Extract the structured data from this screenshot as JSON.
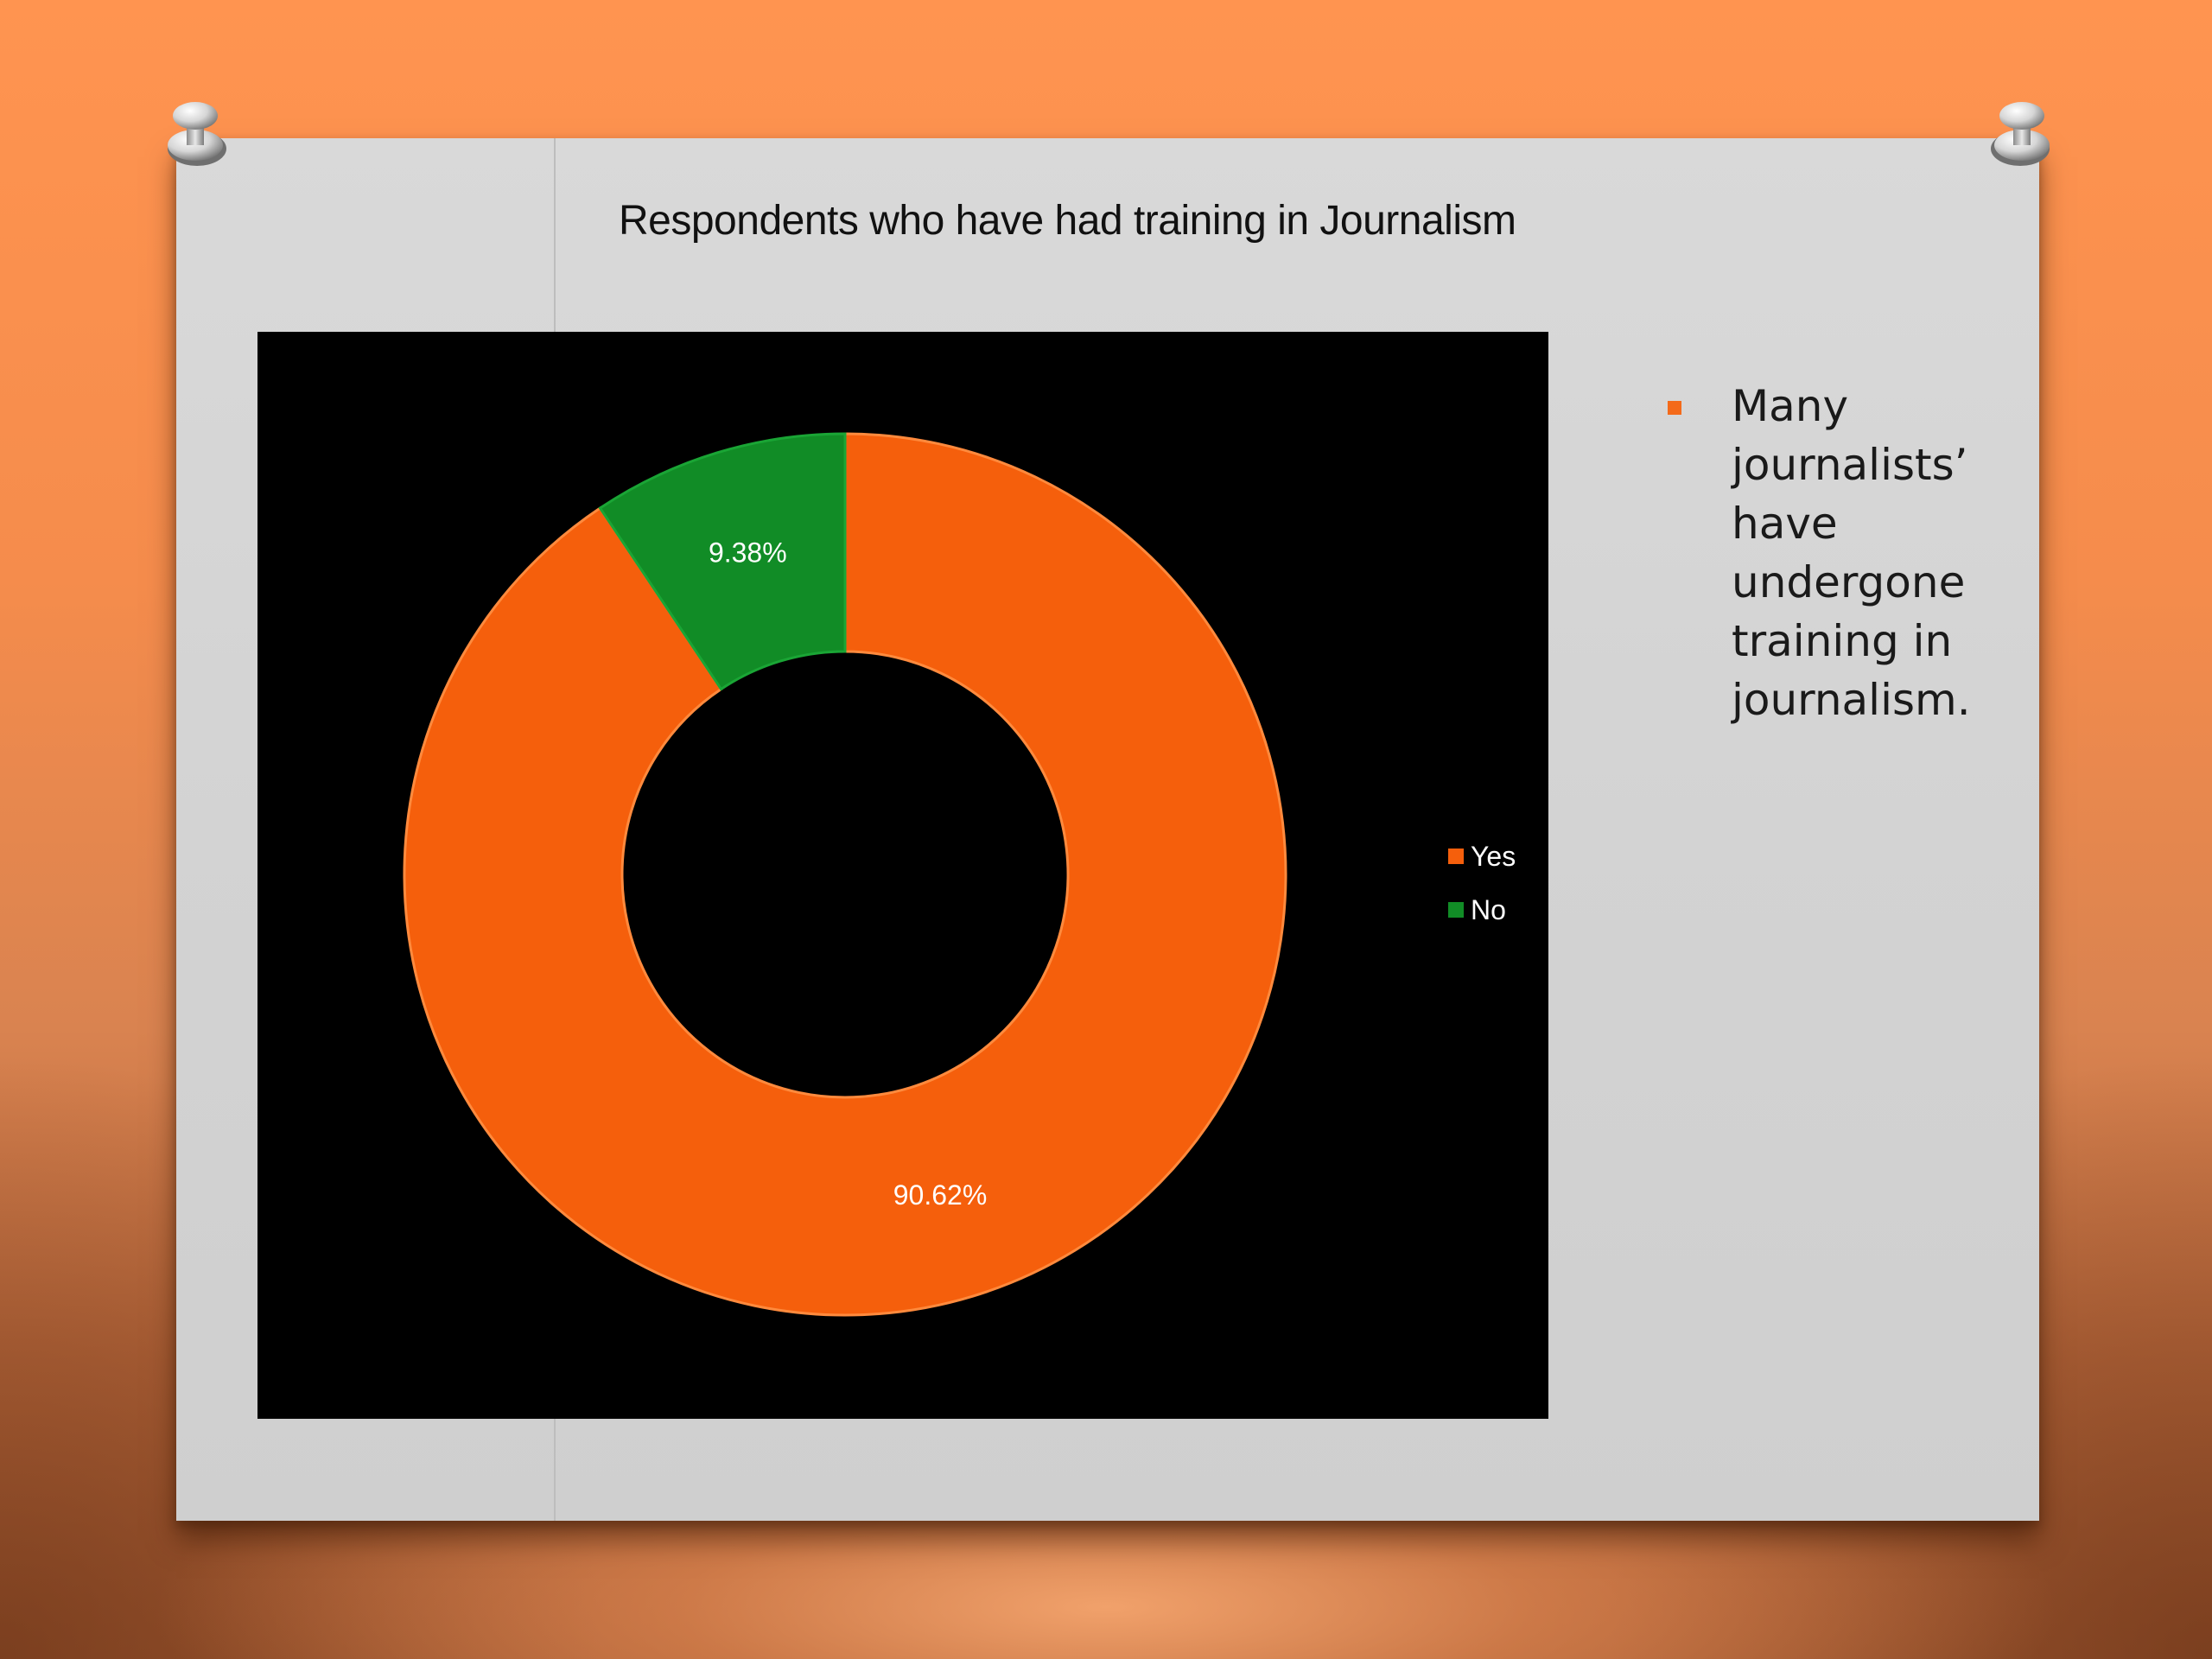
{
  "slide": {
    "note": "Many journalists’ have undergone training in journalism."
  },
  "colors": {
    "yes": "#f55f0c",
    "no": "#118c26",
    "chart_background": "#000000",
    "bullet": "#f46a1a"
  },
  "chart_data": {
    "type": "pie",
    "variant": "donut",
    "title": "Respondents who have had training in Journalism",
    "categories": [
      "Yes",
      "No"
    ],
    "values": [
      90.62,
      9.38
    ],
    "data_labels": [
      "90.62%",
      "9.38%"
    ],
    "legend": {
      "position": "right",
      "entries": [
        "Yes",
        "No"
      ]
    }
  }
}
